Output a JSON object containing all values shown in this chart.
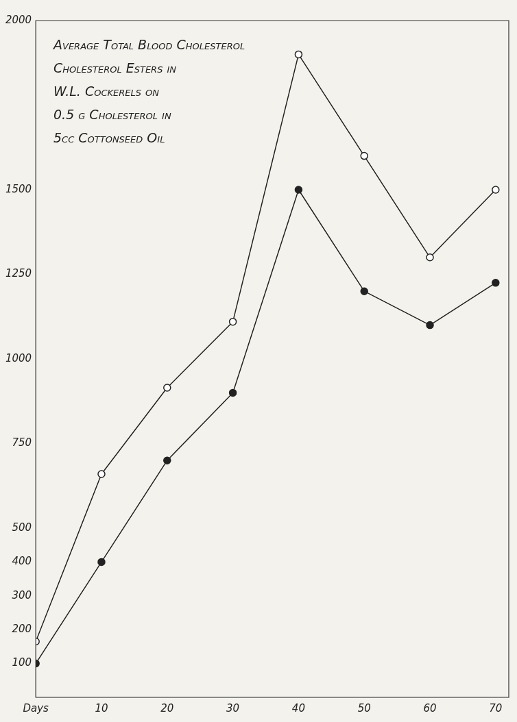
{
  "chart_data": {
    "type": "line",
    "title": "Average Total Blood Cholesterol\nCholesterol Esters in\nW.L. Cockerels on\n0.5 g Cholesterol in\n5cc Cottonseed Oil",
    "x": [
      0,
      10,
      20,
      30,
      40,
      50,
      60,
      70
    ],
    "series": [
      {
        "color": "#222222",
        "colors": [
          "#ffffff",
          "#ffffff",
          "#ffffff",
          "#ffffff",
          "#ffffff",
          "#ffffff",
          "#ffffff",
          "#ffffff"
        ],
        "values": [
          165,
          660,
          915,
          1110,
          1900,
          1600,
          1300,
          1500
        ]
      },
      {
        "color": "#222222",
        "values": [
          100,
          400,
          700,
          900,
          1500,
          1200,
          1100,
          1225
        ]
      }
    ],
    "xlim": [
      0,
      72
    ],
    "xticks": [
      {
        "value": 0,
        "label": "Days"
      },
      10,
      20,
      30,
      40,
      50,
      60,
      70
    ],
    "ylim": [
      0,
      2000
    ],
    "yticks": [
      100,
      200,
      300,
      400,
      500,
      750,
      1000,
      1250,
      1500,
      2000
    ],
    "grid": false,
    "legend": false,
    "marker": "circle",
    "line_style": "solid"
  }
}
